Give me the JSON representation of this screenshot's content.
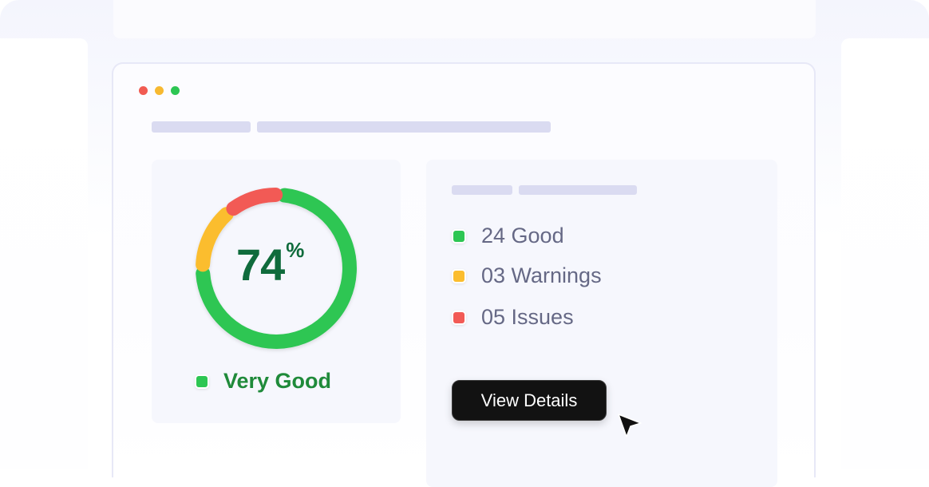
{
  "gauge": {
    "value": 74,
    "value_text": "74",
    "unit": "%",
    "rating": "Very Good",
    "segments": [
      {
        "label": "good",
        "color": "#2dc653"
      },
      {
        "label": "warning",
        "color": "#fbbd2e"
      },
      {
        "label": "issue",
        "color": "#f25a55"
      }
    ]
  },
  "summary": {
    "items": [
      {
        "label": "24 Good",
        "color": "#2dc653"
      },
      {
        "label": "03 Warnings",
        "color": "#fbbd2e"
      },
      {
        "label": "05 Issues",
        "color": "#f25a55"
      }
    ],
    "button_label": "View Details"
  },
  "icons": {
    "window_controls": [
      "close-dot",
      "minimize-dot",
      "maximize-dot"
    ],
    "cursor": "cursor-arrow-icon"
  },
  "colors": {
    "accent_dark": "#121212",
    "rating_text": "#1f8a3a",
    "percent_text": "#0f6b3c"
  }
}
